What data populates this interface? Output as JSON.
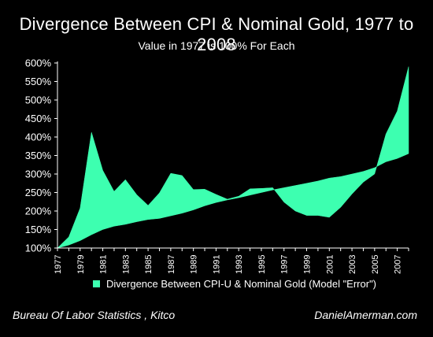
{
  "colors": {
    "background": "#000000",
    "fill": "#3dffb0",
    "axis": "#ffffff",
    "text": "#ffffff"
  },
  "chart_data": {
    "type": "area",
    "title": "Divergence Between CPI & Nominal Gold, 1977 to 2008",
    "subtitle": "Value in 1977 is 100% For Each",
    "legend": "Divergence Between CPI-U & Nominal Gold (Model \"Error\")",
    "legend_position": "bottom",
    "grid": false,
    "ylim": [
      100,
      600
    ],
    "yticks": [
      100,
      150,
      200,
      250,
      300,
      350,
      400,
      450,
      500,
      550,
      600
    ],
    "ytick_labels": [
      "100%",
      "150%",
      "200%",
      "250%",
      "300%",
      "350%",
      "400%",
      "450%",
      "500%",
      "550%",
      "600%"
    ],
    "xtick_labels": [
      "1977",
      "1979",
      "1981",
      "1983",
      "1985",
      "1987",
      "1989",
      "1991",
      "1993",
      "1995",
      "1997",
      "1999",
      "2001",
      "2003",
      "2005",
      "2007"
    ],
    "x": [
      1977,
      1978,
      1979,
      1980,
      1981,
      1982,
      1983,
      1984,
      1985,
      1986,
      1987,
      1988,
      1989,
      1990,
      1991,
      1992,
      1993,
      1994,
      1995,
      1996,
      1997,
      1998,
      1999,
      2000,
      2001,
      2002,
      2003,
      2004,
      2005,
      2006,
      2007,
      2008
    ],
    "series": [
      {
        "name": "CPI-U",
        "values": [
          100,
          108,
          120,
          136,
          150,
          159,
          164,
          171,
          177,
          180,
          187,
          194,
          203,
          214,
          223,
          230,
          236,
          243,
          250,
          257,
          263,
          269,
          275,
          281,
          289,
          293,
          300,
          307,
          317,
          333,
          342,
          355
        ]
      },
      {
        "name": "Nominal Gold",
        "values": [
          100,
          130,
          208,
          413,
          310,
          253,
          285,
          244,
          215,
          249,
          302,
          296,
          258,
          259,
          245,
          232,
          240,
          260,
          261,
          263,
          224,
          200,
          188,
          188,
          183,
          210,
          246,
          278,
          300,
          408,
          470,
          590
        ]
      }
    ]
  },
  "source_left": "Bureau Of Labor Statistics , Kitco",
  "source_right": "DanielAmerman.com"
}
